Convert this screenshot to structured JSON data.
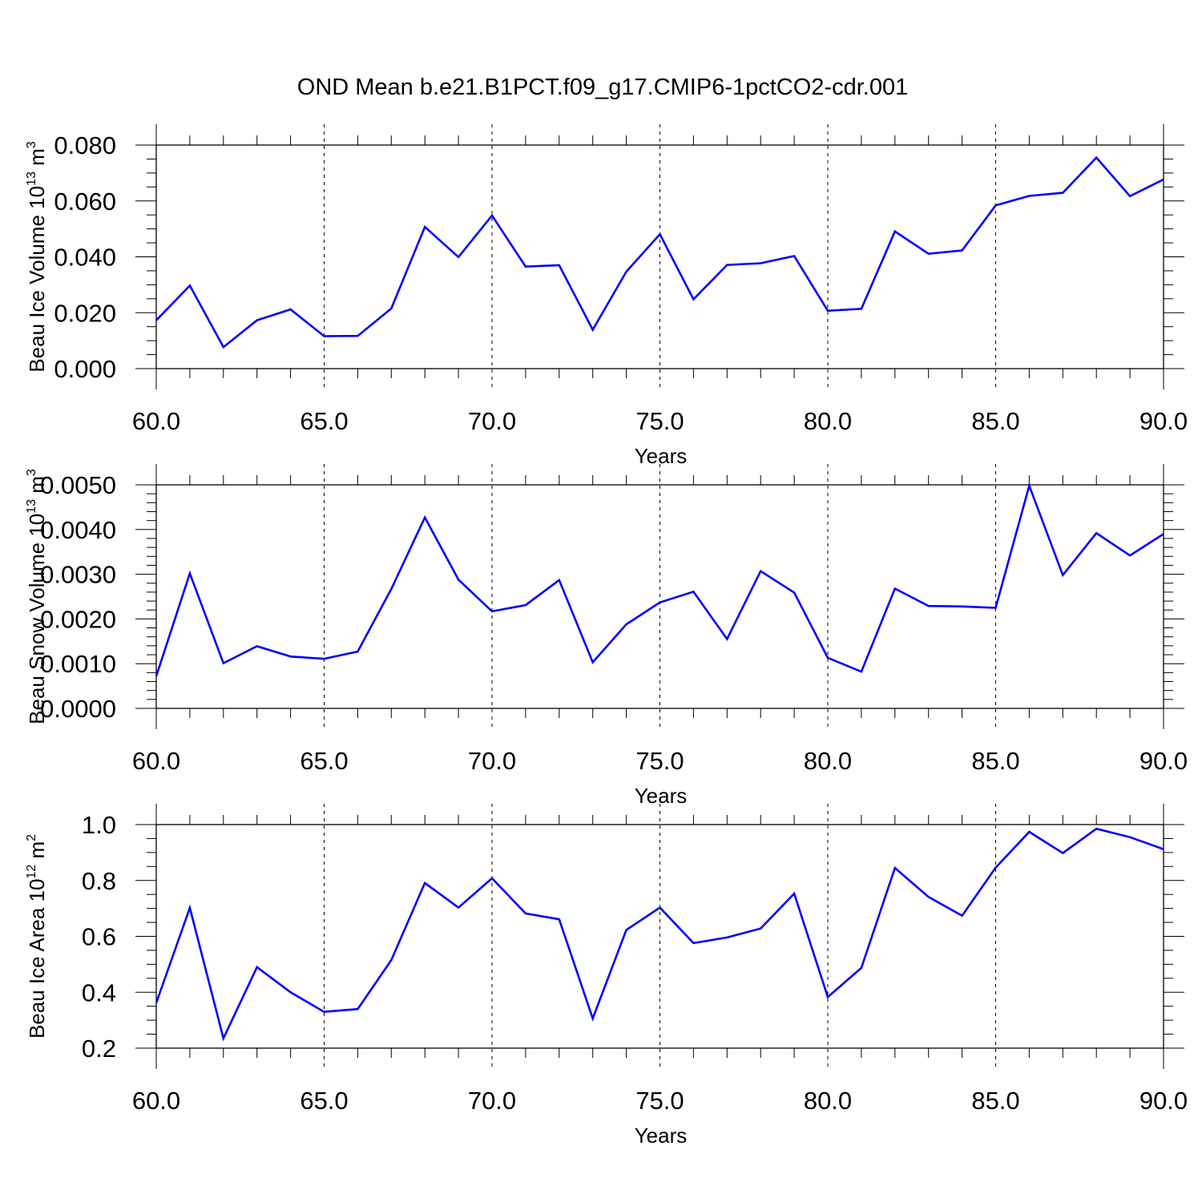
{
  "title": "OND Mean b.e21.B1PCT.f09_g17.CMIP6-1pctCO2-cdr.001",
  "line_color": "#0000ff",
  "chart_data": [
    {
      "type": "line",
      "name": "ice-volume",
      "ylabel": "Beau Ice Volume 10",
      "ylabel_exp": "13",
      "ylabel_unit": " m",
      "ylabel_unit_exp": "3",
      "xlabel": "Years",
      "xlim": [
        60,
        90
      ],
      "ylim": [
        0,
        0.08
      ],
      "y_minor_step": 0.005,
      "xticks": [
        60,
        65,
        70,
        75,
        80,
        85,
        90
      ],
      "xtick_labels": [
        "60.0",
        "65.0",
        "70.0",
        "75.0",
        "80.0",
        "85.0",
        "90.0"
      ],
      "yticks": [
        0,
        0.02,
        0.04,
        0.06,
        0.08
      ],
      "ytick_labels": [
        "0.000",
        "0.020",
        "0.040",
        "0.060",
        "0.080"
      ],
      "x": [
        60,
        61,
        62,
        63,
        64,
        65,
        66,
        67,
        68,
        69,
        70,
        71,
        72,
        73,
        74,
        75,
        76,
        77,
        78,
        79,
        80,
        81,
        82,
        83,
        84,
        85,
        86,
        87,
        88,
        89,
        90
      ],
      "values": [
        0.0173,
        0.0297,
        0.0077,
        0.0173,
        0.0212,
        0.0116,
        0.0117,
        0.0215,
        0.0507,
        0.0399,
        0.0548,
        0.0365,
        0.037,
        0.0139,
        0.0347,
        0.0481,
        0.0248,
        0.0371,
        0.0377,
        0.0403,
        0.0207,
        0.0214,
        0.0491,
        0.0411,
        0.0423,
        0.0584,
        0.0618,
        0.0629,
        0.0755,
        0.0617,
        0.0677
      ]
    },
    {
      "type": "line",
      "name": "snow-volume",
      "ylabel": "Beau Snow Volume 10",
      "ylabel_exp": "13",
      "ylabel_unit": " m",
      "ylabel_unit_exp": "3",
      "xlabel": "Years",
      "xlim": [
        60,
        90
      ],
      "ylim": [
        0,
        0.005
      ],
      "y_minor_step": 0.0002,
      "xticks": [
        60,
        65,
        70,
        75,
        80,
        85,
        90
      ],
      "xtick_labels": [
        "60.0",
        "65.0",
        "70.0",
        "75.0",
        "80.0",
        "85.0",
        "90.0"
      ],
      "yticks": [
        0,
        0.001,
        0.002,
        0.003,
        0.004,
        0.005
      ],
      "ytick_labels": [
        "0.0000",
        "0.0010",
        "0.0020",
        "0.0030",
        "0.0040",
        "0.0050"
      ],
      "x": [
        60,
        61,
        62,
        63,
        64,
        65,
        66,
        67,
        68,
        69,
        70,
        71,
        72,
        73,
        74,
        75,
        76,
        77,
        78,
        79,
        80,
        81,
        82,
        83,
        84,
        85,
        86,
        87,
        88,
        89,
        90
      ],
      "values": [
        0.00072,
        0.00302,
        0.00101,
        0.00139,
        0.00116,
        0.00111,
        0.00127,
        0.00267,
        0.00427,
        0.00288,
        0.00217,
        0.00231,
        0.00287,
        0.00103,
        0.00188,
        0.00237,
        0.00261,
        0.00155,
        0.00307,
        0.00259,
        0.00113,
        0.00082,
        0.00268,
        0.00229,
        0.00228,
        0.00225,
        0.00498,
        0.00298,
        0.00392,
        0.00342,
        0.0039
      ]
    },
    {
      "type": "line",
      "name": "ice-area",
      "ylabel": "Beau Ice Area 10",
      "ylabel_exp": "12",
      "ylabel_unit": " m",
      "ylabel_unit_exp": "2",
      "xlabel": "Years",
      "xlim": [
        60,
        90
      ],
      "ylim": [
        0.2,
        1.0
      ],
      "y_minor_step": 0.05,
      "xticks": [
        60,
        65,
        70,
        75,
        80,
        85,
        90
      ],
      "xtick_labels": [
        "60.0",
        "65.0",
        "70.0",
        "75.0",
        "80.0",
        "85.0",
        "90.0"
      ],
      "yticks": [
        0.2,
        0.4,
        0.6,
        0.8,
        1.0
      ],
      "ytick_labels": [
        "0.2",
        "0.4",
        "0.6",
        "0.8",
        "1.0"
      ],
      "x": [
        60,
        61,
        62,
        63,
        64,
        65,
        66,
        67,
        68,
        69,
        70,
        71,
        72,
        73,
        74,
        75,
        76,
        77,
        78,
        79,
        80,
        81,
        82,
        83,
        84,
        85,
        86,
        87,
        88,
        89,
        90
      ],
      "values": [
        0.362,
        0.702,
        0.235,
        0.49,
        0.4,
        0.33,
        0.34,
        0.515,
        0.791,
        0.703,
        0.808,
        0.682,
        0.661,
        0.306,
        0.623,
        0.703,
        0.576,
        0.596,
        0.628,
        0.753,
        0.383,
        0.487,
        0.845,
        0.741,
        0.674,
        0.846,
        0.974,
        0.898,
        0.985,
        0.955,
        0.912
      ]
    }
  ]
}
